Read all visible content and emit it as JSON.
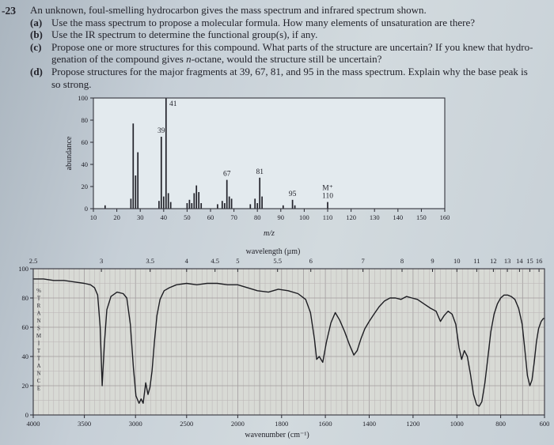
{
  "page": {
    "problem_number": "-23",
    "intro": "An unknown, foul-smelling hydrocarbon gives the mass spectrum and infrared spectrum shown.",
    "items": [
      {
        "label": "(a)",
        "lines": [
          "Use the mass spectrum to propose a molecular formula. How many elements of unsaturation are there?"
        ]
      },
      {
        "label": "(b)",
        "lines": [
          "Use the IR spectrum to determine the functional group(s), if any."
        ]
      },
      {
        "label": "(c)",
        "lines": [
          "Propose one or more structures for this compound. What parts of the structure are uncertain? If you knew that hydro-",
          "genation of the compound gives *n*-octane, would the structure still be uncertain?"
        ]
      },
      {
        "label": "(d)",
        "lines": [
          "Propose structures for the major fragments at 39, 67, 81, and 95 in the mass spectrum. Explain why the base peak is",
          "so strong."
        ]
      }
    ]
  },
  "chart_data": [
    {
      "type": "bar",
      "title": "mass spectrum",
      "xlabel": "m/z",
      "ylabel": "abundance",
      "xlim": [
        10,
        160
      ],
      "ylim": [
        0,
        100
      ],
      "x_ticks": [
        10,
        20,
        30,
        40,
        50,
        60,
        70,
        80,
        90,
        100,
        110,
        120,
        130,
        140,
        150,
        160
      ],
      "y_ticks": [
        0,
        20,
        40,
        60,
        80,
        100
      ],
      "grid": false,
      "peaks": [
        [
          15,
          3
        ],
        [
          26,
          9
        ],
        [
          27,
          77
        ],
        [
          28,
          30
        ],
        [
          29,
          51
        ],
        [
          38,
          7
        ],
        [
          39,
          65
        ],
        [
          40,
          11
        ],
        [
          41,
          100
        ],
        [
          42,
          14
        ],
        [
          43,
          6
        ],
        [
          50,
          5
        ],
        [
          51,
          8
        ],
        [
          52,
          5
        ],
        [
          53,
          14
        ],
        [
          54,
          21
        ],
        [
          55,
          15
        ],
        [
          56,
          5
        ],
        [
          63,
          4
        ],
        [
          65,
          7
        ],
        [
          66,
          5
        ],
        [
          67,
          26
        ],
        [
          68,
          11
        ],
        [
          69,
          9
        ],
        [
          77,
          4
        ],
        [
          79,
          9
        ],
        [
          80,
          5
        ],
        [
          81,
          28
        ],
        [
          82,
          11
        ],
        [
          91,
          3
        ],
        [
          95,
          8
        ],
        [
          96,
          3
        ],
        [
          110,
          6
        ]
      ],
      "peak_labels": [
        {
          "mz": 39,
          "lines": [
            "39"
          ]
        },
        {
          "mz": 41,
          "lines": [
            "41"
          ]
        },
        {
          "mz": 67,
          "lines": [
            "67"
          ]
        },
        {
          "mz": 81,
          "lines": [
            "81"
          ]
        },
        {
          "mz": 95,
          "lines": [
            "95"
          ]
        },
        {
          "mz": 110,
          "lines": [
            "M⁺",
            "110"
          ]
        }
      ]
    },
    {
      "type": "line",
      "title": "infrared spectrum",
      "xlabel_top": "wavelength (µm)",
      "xlabel_bottom": "wavenumber (cm⁻¹)",
      "ylabel": "%TRANSMITTANCE",
      "x_scale_note": "linear in wavenumber, scale change at 2000 cm-1",
      "wavenumber_ticks": [
        4000,
        3500,
        3000,
        2500,
        2000,
        1800,
        1600,
        1400,
        1200,
        1000,
        800,
        600
      ],
      "wavelength_ticks": [
        2.5,
        3,
        3.5,
        4,
        4.5,
        5,
        5.5,
        6,
        7,
        8,
        9,
        10,
        11,
        12,
        13,
        14,
        15,
        16
      ],
      "y_ticks": [
        0,
        20,
        40,
        60,
        80,
        100
      ],
      "ylim": [
        0,
        100
      ],
      "grid": true,
      "points": [
        [
          4000,
          93
        ],
        [
          3900,
          93
        ],
        [
          3800,
          92
        ],
        [
          3700,
          92
        ],
        [
          3600,
          91
        ],
        [
          3500,
          90
        ],
        [
          3440,
          89
        ],
        [
          3400,
          87
        ],
        [
          3370,
          82
        ],
        [
          3345,
          60
        ],
        [
          3326,
          20
        ],
        [
          3305,
          48
        ],
        [
          3280,
          72
        ],
        [
          3240,
          81
        ],
        [
          3180,
          84
        ],
        [
          3120,
          83
        ],
        [
          3085,
          80
        ],
        [
          3050,
          62
        ],
        [
          3020,
          32
        ],
        [
          2995,
          13
        ],
        [
          2965,
          8
        ],
        [
          2945,
          11
        ],
        [
          2925,
          8
        ],
        [
          2900,
          22
        ],
        [
          2878,
          14
        ],
        [
          2858,
          19
        ],
        [
          2838,
          30
        ],
        [
          2815,
          50
        ],
        [
          2790,
          68
        ],
        [
          2760,
          79
        ],
        [
          2720,
          85
        ],
        [
          2670,
          87
        ],
        [
          2600,
          89
        ],
        [
          2500,
          90
        ],
        [
          2400,
          89
        ],
        [
          2300,
          90
        ],
        [
          2200,
          90
        ],
        [
          2100,
          89
        ],
        [
          2000,
          89
        ],
        [
          1955,
          87
        ],
        [
          1910,
          85
        ],
        [
          1860,
          84
        ],
        [
          1815,
          86
        ],
        [
          1770,
          85
        ],
        [
          1725,
          83
        ],
        [
          1690,
          79
        ],
        [
          1668,
          70
        ],
        [
          1650,
          52
        ],
        [
          1640,
          38
        ],
        [
          1628,
          40
        ],
        [
          1612,
          36
        ],
        [
          1595,
          50
        ],
        [
          1575,
          63
        ],
        [
          1555,
          70
        ],
        [
          1535,
          65
        ],
        [
          1512,
          57
        ],
        [
          1490,
          48
        ],
        [
          1470,
          41
        ],
        [
          1455,
          44
        ],
        [
          1438,
          52
        ],
        [
          1420,
          59
        ],
        [
          1400,
          64
        ],
        [
          1378,
          69
        ],
        [
          1355,
          74
        ],
        [
          1330,
          78
        ],
        [
          1305,
          80
        ],
        [
          1280,
          80
        ],
        [
          1255,
          79
        ],
        [
          1230,
          81
        ],
        [
          1205,
          80
        ],
        [
          1180,
          79
        ],
        [
          1150,
          76
        ],
        [
          1120,
          73
        ],
        [
          1095,
          71
        ],
        [
          1075,
          64
        ],
        [
          1058,
          68
        ],
        [
          1040,
          71
        ],
        [
          1022,
          69
        ],
        [
          1005,
          62
        ],
        [
          990,
          46
        ],
        [
          978,
          38
        ],
        [
          966,
          44
        ],
        [
          952,
          40
        ],
        [
          938,
          28
        ],
        [
          924,
          14
        ],
        [
          910,
          7
        ],
        [
          898,
          6
        ],
        [
          886,
          9
        ],
        [
          872,
          22
        ],
        [
          858,
          40
        ],
        [
          845,
          57
        ],
        [
          830,
          69
        ],
        [
          815,
          76
        ],
        [
          800,
          80
        ],
        [
          785,
          82
        ],
        [
          768,
          82
        ],
        [
          752,
          81
        ],
        [
          735,
          79
        ],
        [
          718,
          73
        ],
        [
          702,
          62
        ],
        [
          690,
          45
        ],
        [
          678,
          27
        ],
        [
          667,
          20
        ],
        [
          657,
          24
        ],
        [
          647,
          36
        ],
        [
          637,
          50
        ],
        [
          627,
          59
        ],
        [
          615,
          64
        ],
        [
          605,
          66
        ],
        [
          600,
          66
        ]
      ]
    }
  ]
}
